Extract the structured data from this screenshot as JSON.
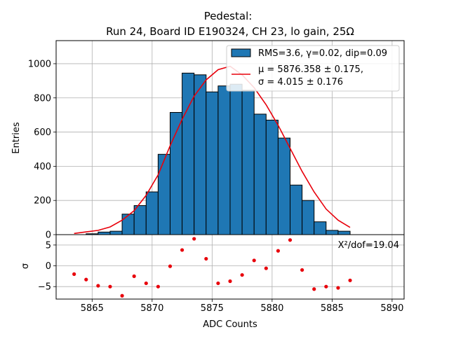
{
  "chart_data": [
    {
      "type": "bar",
      "title_line1": "Pedestal:",
      "title_line2": "Run 24, Board ID E190324, CH 23, lo gain, 25Ω",
      "ylabel": "Entries",
      "xlim": [
        5862,
        5891
      ],
      "ylim": [
        0,
        1135
      ],
      "grid": true,
      "yticks": [
        0,
        200,
        400,
        600,
        800,
        1000
      ],
      "histogram": {
        "bin_edges": [
          5862.5,
          5863.5,
          5864.5,
          5865.5,
          5866.5,
          5867.5,
          5868.5,
          5869.5,
          5870.5,
          5871.5,
          5872.5,
          5873.5,
          5874.5,
          5875.5,
          5876.5,
          5877.5,
          5878.5,
          5879.5,
          5880.5,
          5881.5,
          5882.5,
          5883.5,
          5884.5,
          5885.5,
          5886.5,
          5887.5
        ],
        "counts": [
          0,
          0,
          5,
          15,
          20,
          120,
          170,
          250,
          470,
          715,
          945,
          935,
          835,
          870,
          880,
          845,
          705,
          670,
          565,
          290,
          200,
          75,
          25,
          20,
          0
        ],
        "color": "#1f77b4"
      },
      "fit_curve": {
        "x": [
          5863.5,
          5864.5,
          5865.5,
          5866.5,
          5867.5,
          5868.5,
          5869.5,
          5870.5,
          5871.5,
          5872.5,
          5873.5,
          5874.5,
          5875.5,
          5876.5,
          5877.5,
          5878.5,
          5879.5,
          5880.5,
          5881.5,
          5882.5,
          5883.5,
          5884.5,
          5885.5,
          5886.5
        ],
        "y": [
          7,
          16,
          25,
          45,
          85,
          140,
          230,
          350,
          520,
          675,
          810,
          905,
          965,
          985,
          935,
          860,
          760,
          640,
          505,
          370,
          250,
          150,
          85,
          42
        ],
        "color": "#e8000b"
      },
      "legend": {
        "location": "top-right",
        "entries": [
          {
            "kind": "patch",
            "label": "RMS=3.6, γ=0.02, dip=0.09"
          },
          {
            "kind": "line",
            "label_line1": "μ = 5876.358 ± 0.175,",
            "label_line2": "σ = 4.015 ± 0.176"
          }
        ]
      }
    },
    {
      "type": "scatter",
      "xlabel": "ADC Counts",
      "ylabel": "σ",
      "xlim": [
        5862,
        5891
      ],
      "ylim": [
        -8,
        7.5
      ],
      "xticks": [
        5865,
        5870,
        5875,
        5880,
        5885,
        5890
      ],
      "yticks": [
        5,
        0,
        -5
      ],
      "ytick_labels": [
        "5",
        "0",
        "−5"
      ],
      "annotation": "X²/dof=19.04",
      "color": "#e8000b",
      "points": {
        "x": [
          5863.5,
          5864.5,
          5865.5,
          5866.5,
          5867.5,
          5868.5,
          5869.5,
          5870.5,
          5871.5,
          5872.5,
          5873.5,
          5874.5,
          5875.5,
          5876.5,
          5877.5,
          5878.5,
          5879.5,
          5880.5,
          5881.5,
          5882.5,
          5883.5,
          5884.5,
          5885.5,
          5886.5
        ],
        "y": [
          -2.0,
          -3.3,
          -4.8,
          -5.0,
          -7.2,
          -2.5,
          -4.2,
          -5.0,
          -0.1,
          3.8,
          6.5,
          1.7,
          -4.2,
          -3.7,
          -2.2,
          1.3,
          -0.6,
          3.6,
          6.2,
          -1.0,
          -5.6,
          -5.0,
          -5.3,
          -3.5
        ]
      }
    }
  ]
}
